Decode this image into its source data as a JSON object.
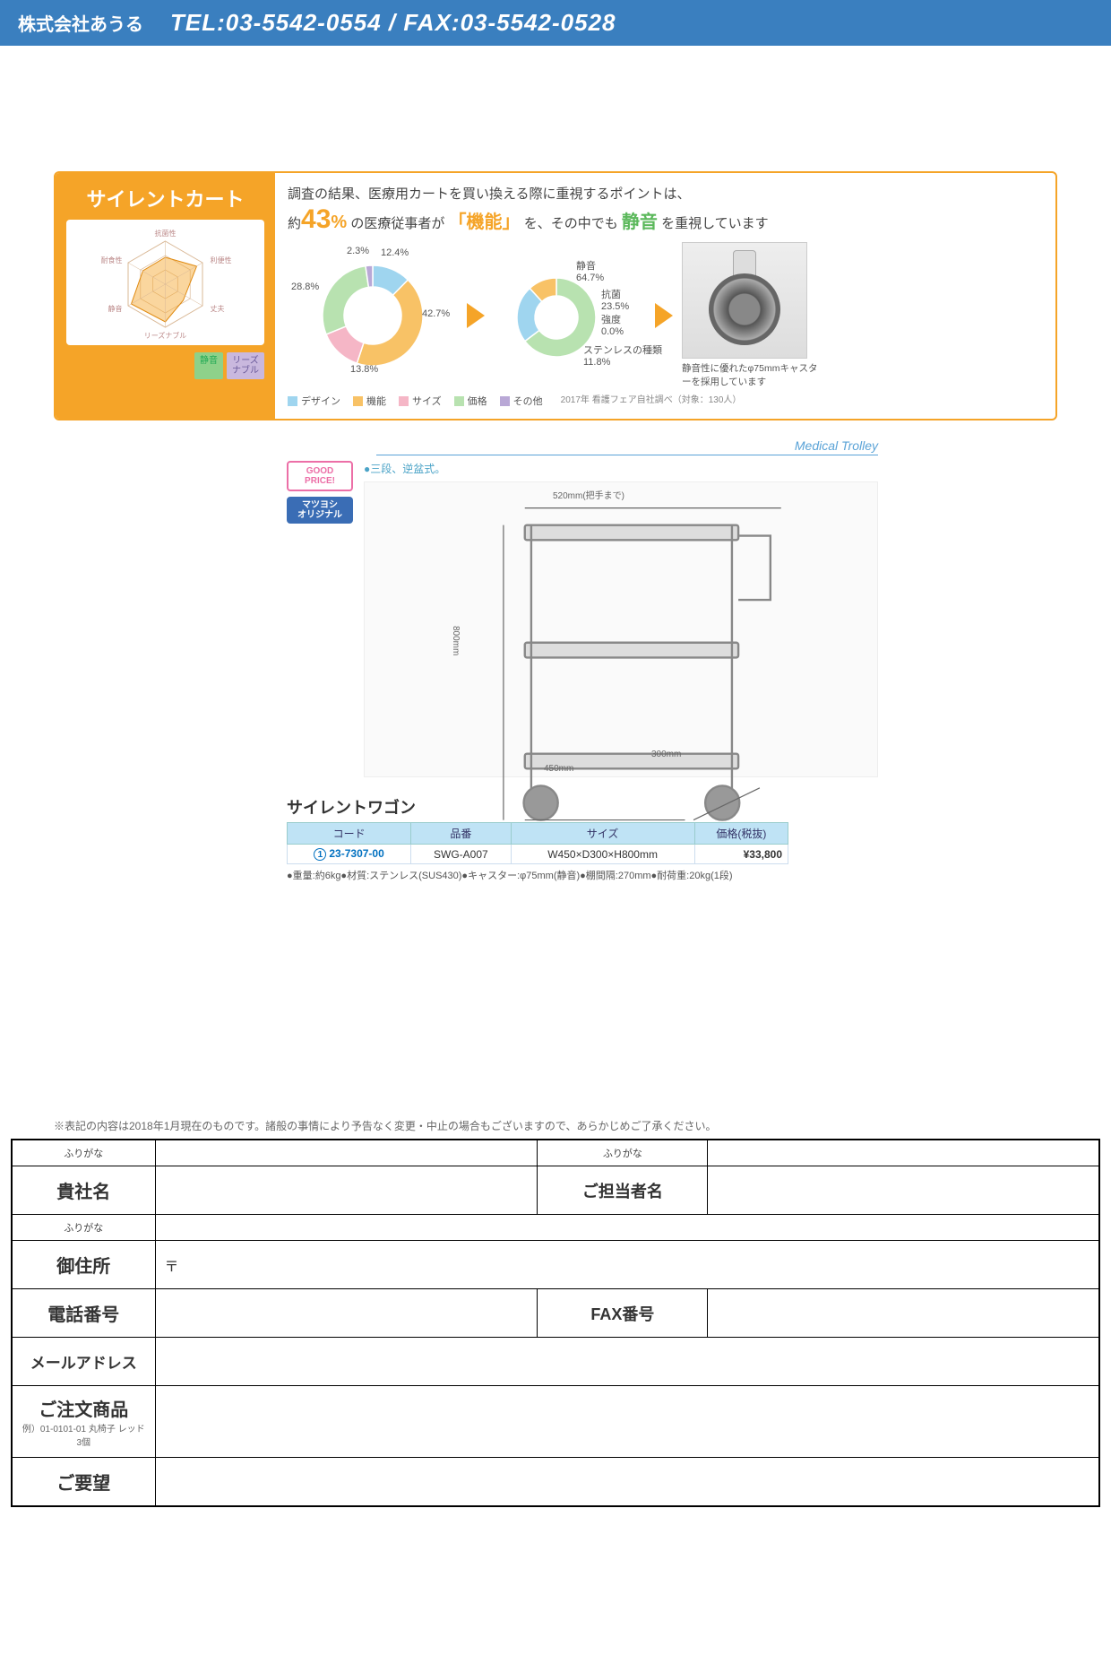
{
  "header": {
    "company": "株式会社あうる",
    "contact": "TEL:03-5542-0554 / FAX:03-5542-0528"
  },
  "infographic": {
    "title": "サイレントカート",
    "radar_axes": [
      "抗菌性",
      "利便性",
      "丈夫",
      "リーズナブル",
      "静音",
      "耐食性"
    ],
    "tags": {
      "quiet": "静音",
      "reasonable": "リーズ\nナブル"
    },
    "survey": {
      "line1": "調査の結果、医療用カートを買い換える際に重視するポイントは、",
      "pct_prefix": "約",
      "pct": "43",
      "pct_suffix": "%",
      "text_a": "の医療従事者が",
      "highlight_func": "「機能」",
      "text_b": "を、その中でも",
      "highlight_quiet": "静音",
      "text_c": "を重視しています"
    },
    "donut1": {
      "segments": [
        {
          "label": "デザイン",
          "value": 12.4,
          "color": "#9fd5ef"
        },
        {
          "label": "機能",
          "value": 42.7,
          "color": "#f8c266"
        },
        {
          "label": "サイズ",
          "value": 13.8,
          "color": "#f5b6c6"
        },
        {
          "label": "価格",
          "value": 28.8,
          "color": "#b8e2b0"
        },
        {
          "label": "その他",
          "value": 2.3,
          "color": "#b9a8d6"
        }
      ]
    },
    "donut2": {
      "segments": [
        {
          "label": "静音",
          "value": 64.7,
          "color": "#b8e2b0"
        },
        {
          "label": "抗菌",
          "value": 23.5,
          "color": "#9fd5ef"
        },
        {
          "label": "強度",
          "value": 0.0,
          "color": "#b9a8d6"
        },
        {
          "label": "ステンレスの種類",
          "value": 11.8,
          "color": "#f8c266"
        }
      ]
    },
    "legend": [
      "デザイン",
      "機能",
      "サイズ",
      "価格",
      "その他"
    ],
    "legend_colors": [
      "#9fd5ef",
      "#f8c266",
      "#f5b6c6",
      "#b8e2b0",
      "#b9a8d6"
    ],
    "survey_note": "2017年 看護フェア自社調べ（対象：130人）",
    "caster_text": "静音性に優れたφ75mmキャスターを採用しています"
  },
  "product": {
    "section_label": "Medical Trolley",
    "badges": {
      "goodprice": "GOOD PRICE!",
      "original": "マツヨシ\nオリジナル"
    },
    "feature_note": "●三段、逆盆式。",
    "dimensions": {
      "width_handle": "520mm(把手まで)",
      "height": "800mm",
      "width": "450mm",
      "depth": "300mm"
    },
    "name": "サイレントワゴン",
    "table": {
      "headers": [
        "コード",
        "品番",
        "サイズ",
        "価格(税抜)"
      ],
      "row": {
        "idx": "1",
        "code": "23-7307-00",
        "part": "SWG-A007",
        "size": "W450×D300×H800mm",
        "price": "¥33,800"
      }
    },
    "specs": "●重量:約6kg●材質:ステンレス(SUS430)●キャスター:φ75mm(静音)●棚間隔:270mm●耐荷重:20kg(1段)"
  },
  "disclaimer": "※表記の内容は2018年1月現在のものです。諸般の事情により予告なく変更・中止の場合もございますので、あらかじめご了承ください。",
  "form": {
    "furigana": "ふりがな",
    "company": "貴社名",
    "contact_person": "ご担当者名",
    "address": "御住所",
    "postal_mark": "〒",
    "tel": "電話番号",
    "fax": "FAX番号",
    "email": "メールアドレス",
    "order": "ご注文商品",
    "order_example": "例）01-0101-01 丸椅子 レッド 3個",
    "request": "ご要望"
  }
}
